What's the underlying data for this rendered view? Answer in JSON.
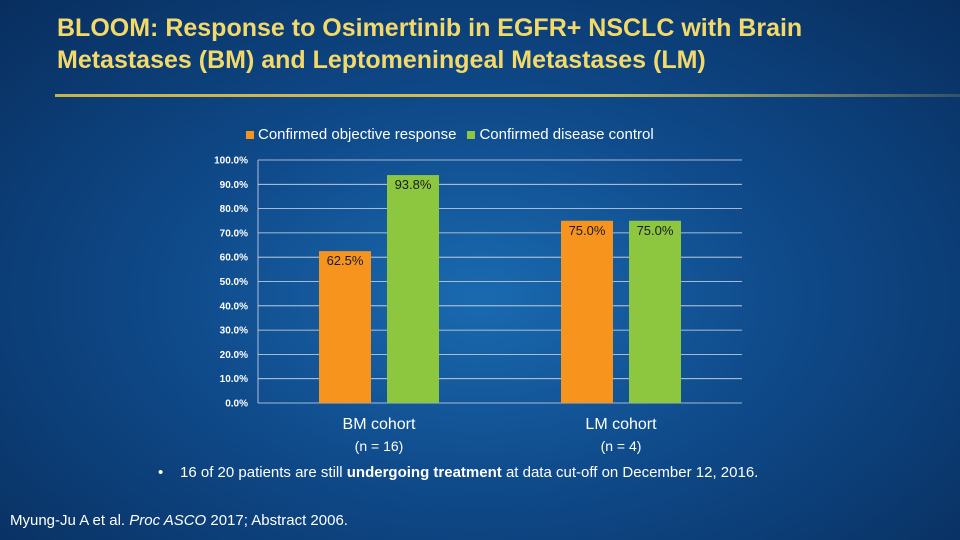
{
  "title": "BLOOM: Response to Osimertinib in EGFR+ NSCLC with Brain Metastases (BM) and Leptomeningeal Metastases (LM)",
  "colors": {
    "objective": "#f7941d",
    "control": "#8dc63f",
    "title": "#f3d96a"
  },
  "chart_data": {
    "type": "bar",
    "title": "",
    "xlabel": "",
    "ylabel": "",
    "ylim": [
      0,
      100
    ],
    "yticks": [
      "0.0%",
      "10.0%",
      "20.0%",
      "30.0%",
      "40.0%",
      "50.0%",
      "60.0%",
      "70.0%",
      "80.0%",
      "90.0%",
      "100.0%"
    ],
    "categories": [
      "BM cohort",
      "LM cohort"
    ],
    "category_subtitles": [
      "(n = 16)",
      "(n = 4)"
    ],
    "series": [
      {
        "name": "Confirmed objective response",
        "values": [
          62.5,
          75.0
        ],
        "labels": [
          "62.5%",
          "75.0%"
        ]
      },
      {
        "name": "Confirmed disease control",
        "values": [
          93.8,
          75.0
        ],
        "labels": [
          "93.8%",
          "75.0%"
        ]
      }
    ],
    "legend_position": "top"
  },
  "bullet": {
    "marker": "•",
    "prefix": "16 of 20 patients are still ",
    "bold": "undergoing treatment",
    "suffix": " at data cut-off on December 12, 2016."
  },
  "citation": {
    "authors": "Myung-Ju A et al. ",
    "journal": "Proc ASCO",
    "rest": " 2017; Abstract 2006."
  }
}
